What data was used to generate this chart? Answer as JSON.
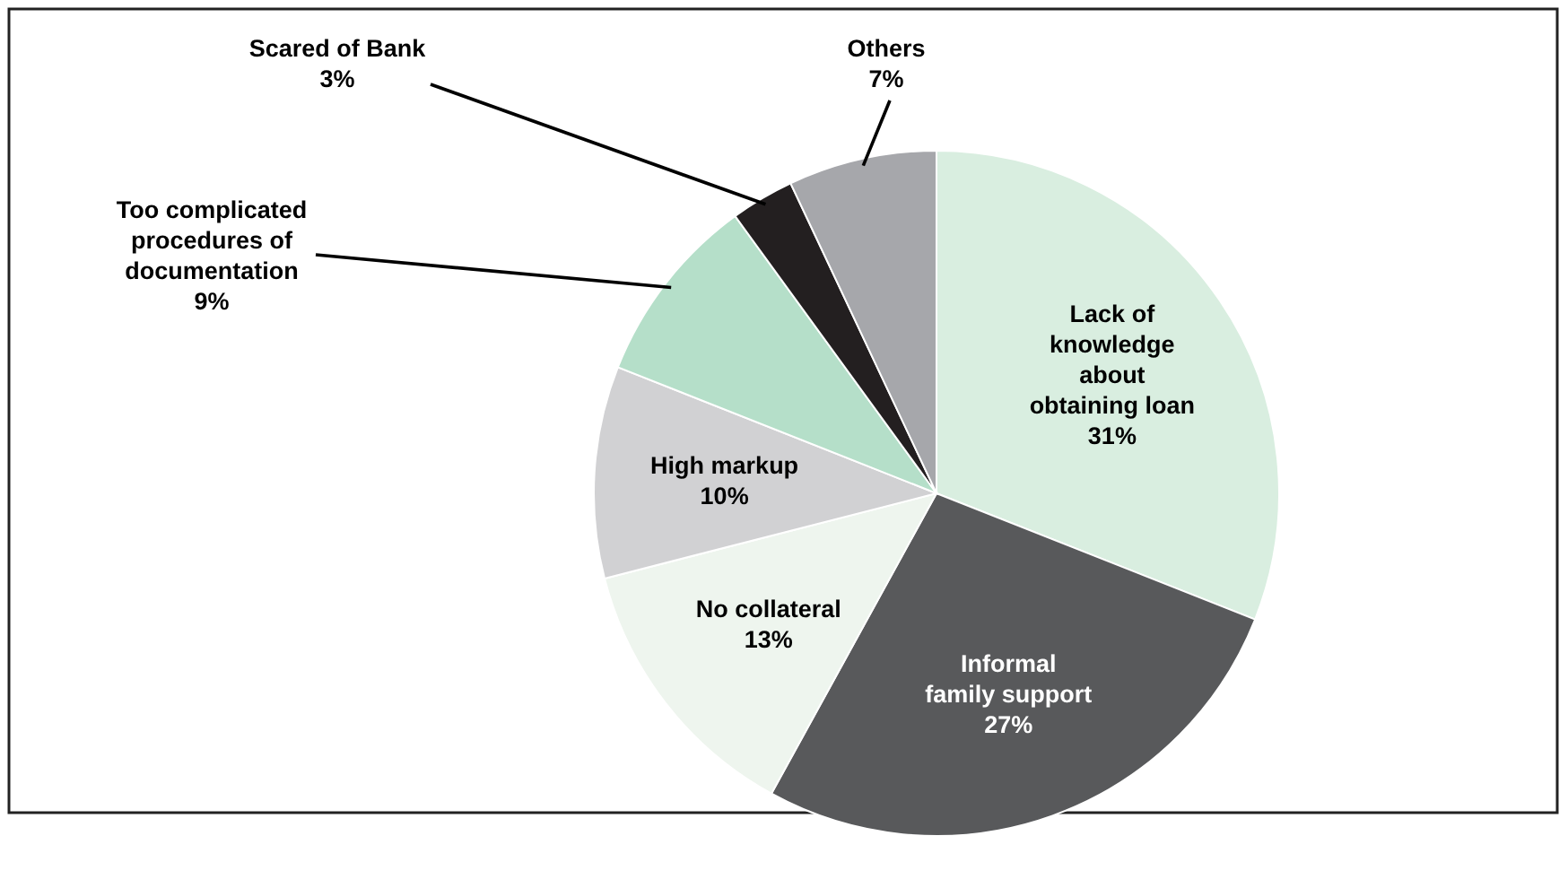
{
  "chart_data": {
    "type": "pie",
    "categories": [
      "Lack of knowledge about obtaining loan",
      "Informal family support",
      "No collateral",
      "High markup",
      "Too complicated procedures of documentation",
      "Scared of Bank",
      "Others"
    ],
    "values": [
      31,
      27,
      13,
      10,
      9,
      3,
      7
    ],
    "colors": [
      "#d9eee0",
      "#58595b",
      "#eef5ee",
      "#d1d1d3",
      "#b5dfc9",
      "#231f20",
      "#a6a7ab"
    ],
    "value_labels": [
      "31%",
      "27%",
      "13%",
      "10%",
      "9%",
      "3%",
      "7%"
    ]
  }
}
